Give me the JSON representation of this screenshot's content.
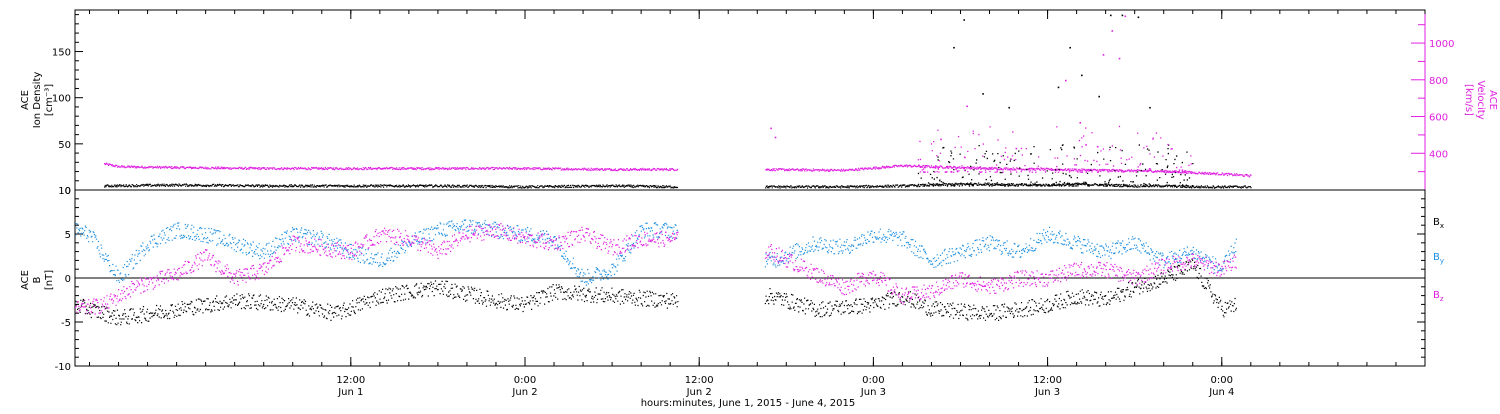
{
  "colors": {
    "black": "#000000",
    "magenta": "#e020e0",
    "blue": "#2090e0",
    "axis": "#000000"
  },
  "xaxis": {
    "label": "hours:minutes, June  1, 2015 - June  4, 2015",
    "range_hours": [
      -7,
      86
    ],
    "ticks": [
      {
        "hour": 12,
        "time": "12:00",
        "date": "Jun 1"
      },
      {
        "hour": 24,
        "time": "0:00",
        "date": "Jun 2"
      },
      {
        "hour": 36,
        "time": "12:00",
        "date": "Jun 2"
      },
      {
        "hour": 48,
        "time": "0:00",
        "date": "Jun 3"
      },
      {
        "hour": 60,
        "time": "12:00",
        "date": "Jun 3"
      },
      {
        "hour": 72,
        "time": "0:00",
        "date": "Jun 4"
      }
    ]
  },
  "chart_data": [
    {
      "type": "scatter",
      "name": "top-panel",
      "ylabel": [
        "ACE",
        "Ion Density",
        "[cm⁻³]"
      ],
      "ylim": [
        0,
        195
      ],
      "yticks": [
        0,
        50,
        100,
        150
      ],
      "y2label": [
        "ACE",
        "Velocity",
        "[km/s]"
      ],
      "y2lim": [
        200,
        1180
      ],
      "y2ticks": [
        400,
        600,
        800,
        1000
      ],
      "data_gap_hours": [
        34.5,
        40.5
      ],
      "series": [
        {
          "label": "density",
          "color": "black",
          "axis": "left",
          "x": [
            -5,
            0,
            6,
            12,
            18,
            24,
            30,
            34,
            40,
            46,
            50,
            52,
            54,
            56,
            58,
            60,
            62,
            64,
            66,
            68,
            70,
            74
          ],
          "y": [
            5,
            6,
            5,
            5,
            5,
            4,
            5,
            4,
            4,
            4,
            5,
            6,
            7,
            7,
            6,
            6,
            7,
            6,
            5,
            5,
            4,
            4
          ],
          "spikes": [
            [
              53.5,
              155
            ],
            [
              54.2,
              185
            ],
            [
              55.5,
              105
            ],
            [
              57.3,
              90
            ],
            [
              58.8,
              40
            ],
            [
              61.5,
              155
            ],
            [
              62.3,
              125
            ],
            [
              63.5,
              102
            ],
            [
              64.3,
              190
            ],
            [
              65.1,
              190
            ],
            [
              66.2,
              188
            ],
            [
              67.0,
              90
            ],
            [
              60.7,
              112
            ]
          ]
        },
        {
          "label": "velocity",
          "color": "magenta",
          "axis": "right",
          "x": [
            -5,
            -4,
            0,
            6,
            12,
            18,
            24,
            30,
            34,
            40,
            46,
            50,
            52,
            56,
            60,
            64,
            68,
            72,
            74
          ],
          "y": [
            345,
            330,
            325,
            320,
            320,
            320,
            320,
            315,
            315,
            315,
            310,
            335,
            330,
            320,
            315,
            310,
            305,
            290,
            280
          ],
          "spikes": [
            [
              40.9,
              540
            ],
            [
              41.2,
              490
            ],
            [
              52.6,
              480
            ],
            [
              54.4,
              660
            ],
            [
              57.8,
              430
            ],
            [
              61.2,
              800
            ],
            [
              62.6,
              450
            ],
            [
              63.4,
              440
            ],
            [
              64.4,
              1070
            ],
            [
              64.9,
              920
            ],
            [
              65.3,
              1150
            ],
            [
              63.8,
              940
            ],
            [
              62.2,
              570
            ]
          ]
        }
      ]
    },
    {
      "type": "scatter",
      "name": "bottom-panel",
      "ylabel": [
        "ACE",
        "B",
        "[nT]"
      ],
      "ylim": [
        -10,
        10
      ],
      "yticks": [
        -10,
        -5,
        0,
        5,
        10
      ],
      "zero_line": true,
      "data_gap_hours": [
        34.5,
        40.5
      ],
      "series": [
        {
          "label": "Bx",
          "legend_text": "B",
          "legend_sub": "x",
          "color": "black",
          "x": [
            -7,
            -4,
            0,
            4,
            8,
            11,
            14,
            18,
            22,
            24,
            26,
            30,
            34,
            41,
            44,
            48,
            50,
            52,
            56,
            60,
            62,
            64,
            66,
            68,
            70,
            72,
            73
          ],
          "y": [
            -3,
            -4.5,
            -3.5,
            -2.5,
            -3,
            -4,
            -2,
            -1,
            -2.5,
            -3,
            -1.5,
            -2,
            -2.5,
            -2,
            -3.5,
            -3,
            -2,
            -3.5,
            -4,
            -3,
            -2,
            -2.5,
            -1,
            0,
            1.5,
            -3.5,
            -3
          ]
        },
        {
          "label": "By",
          "legend_text": "B",
          "legend_sub": "y",
          "color": "blue",
          "x": [
            -7,
            -6,
            -4,
            -2,
            0,
            2,
            4,
            6,
            8,
            10,
            12,
            14,
            16,
            18,
            20,
            22,
            24,
            26,
            28,
            30,
            32,
            34,
            41,
            44,
            46,
            48,
            50,
            52,
            54,
            56,
            58,
            60,
            62,
            64,
            66,
            68,
            70,
            72,
            73
          ],
          "y": [
            5.5,
            5,
            0,
            4,
            5.5,
            5,
            4,
            3,
            5,
            4.5,
            3,
            2,
            4,
            5.5,
            6,
            5.5,
            5,
            4.5,
            0,
            1,
            5.5,
            5.5,
            2,
            4,
            3.5,
            5,
            4.5,
            2,
            3,
            4,
            3,
            5,
            4,
            3,
            4,
            2,
            3,
            1,
            4
          ]
        },
        {
          "label": "Bz",
          "legend_text": "B",
          "legend_sub": "z",
          "color": "magenta",
          "x": [
            -7,
            -5,
            -3,
            0,
            2,
            4,
            6,
            8,
            10,
            12,
            14,
            16,
            18,
            20,
            22,
            24,
            26,
            28,
            30,
            32,
            34,
            41,
            44,
            46,
            48,
            50,
            52,
            54,
            56,
            58,
            60,
            62,
            64,
            66,
            68,
            70,
            72,
            73
          ],
          "y": [
            -3.5,
            -3,
            -1,
            0.5,
            2.5,
            0,
            1,
            4,
            3.5,
            3,
            5,
            4.5,
            3,
            5,
            5.5,
            4.5,
            4,
            5,
            3.5,
            4.5,
            4.5,
            3,
            0.5,
            -1,
            0.5,
            -2,
            -1.5,
            0,
            -1,
            0,
            0,
            1,
            1,
            0,
            1.5,
            2,
            1,
            2
          ]
        }
      ]
    }
  ]
}
